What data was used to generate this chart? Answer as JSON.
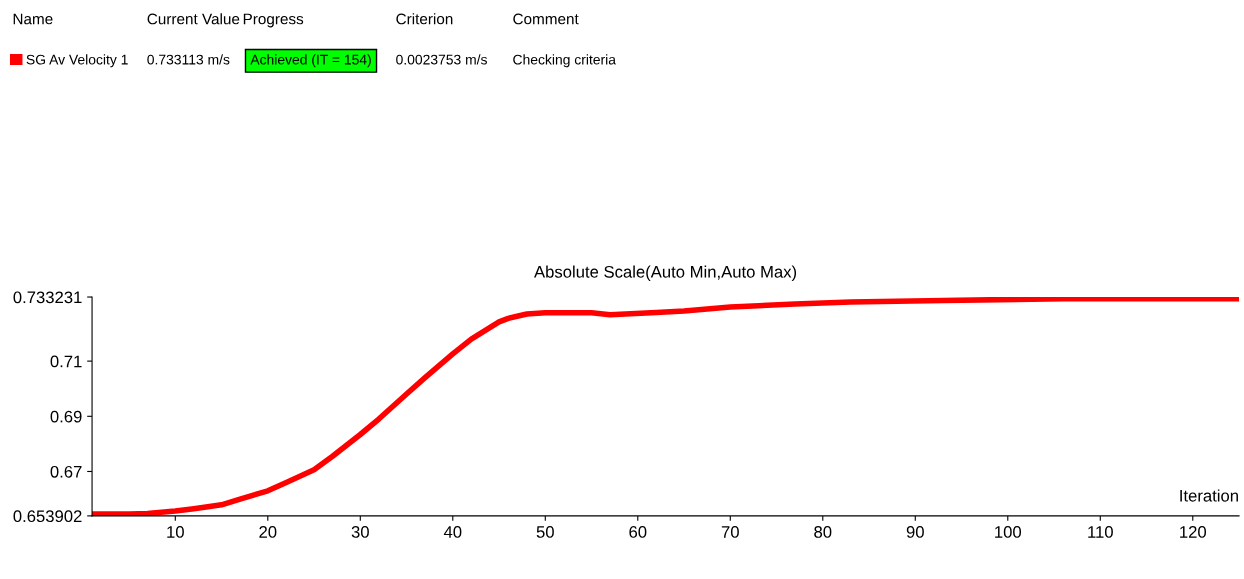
{
  "chart_data": {
    "type": "line",
    "title": "Absolute Scale(Auto Min,Auto Max)",
    "xlabel": "Iteration",
    "annotations": [
      "Name",
      "Current Value",
      "Progress",
      "Criterion",
      "Comment",
      "0.733113 m/s",
      "Achieved (IT = 154)",
      "0.0023753 m/s",
      "Checking criteria"
    ],
    "x": [
      1,
      5,
      7,
      10,
      12,
      15,
      17,
      20,
      22,
      25,
      27,
      30,
      32,
      35,
      37,
      40,
      42,
      45,
      46,
      48,
      50,
      55,
      57,
      62,
      65,
      70,
      77,
      83,
      93,
      106,
      125
    ],
    "series": [
      {
        "name": "SG Av Velocity 1",
        "color": "#ff0000",
        "values": [
          0.6546,
          0.6546,
          0.6548,
          0.6557,
          0.6565,
          0.6579,
          0.66,
          0.663,
          0.666,
          0.6706,
          0.6755,
          0.6834,
          0.689,
          0.6981,
          0.704,
          0.7126,
          0.718,
          0.7242,
          0.7255,
          0.7271,
          0.7275,
          0.7275,
          0.7268,
          0.7276,
          0.7282,
          0.7296,
          0.7307,
          0.7314,
          0.732,
          0.7326,
          0.7326
        ]
      }
    ],
    "xlim": [
      1,
      125
    ],
    "ylim": [
      0.653902,
      0.733231
    ],
    "xticks": [
      10,
      20,
      30,
      40,
      50,
      60,
      70,
      80,
      90,
      100,
      110,
      120
    ],
    "yticks": [
      0.653902,
      0.67,
      0.69,
      0.71,
      0.733231
    ],
    "grid": false,
    "legend": "top left",
    "marker": "none",
    "line_style": "solid"
  }
}
